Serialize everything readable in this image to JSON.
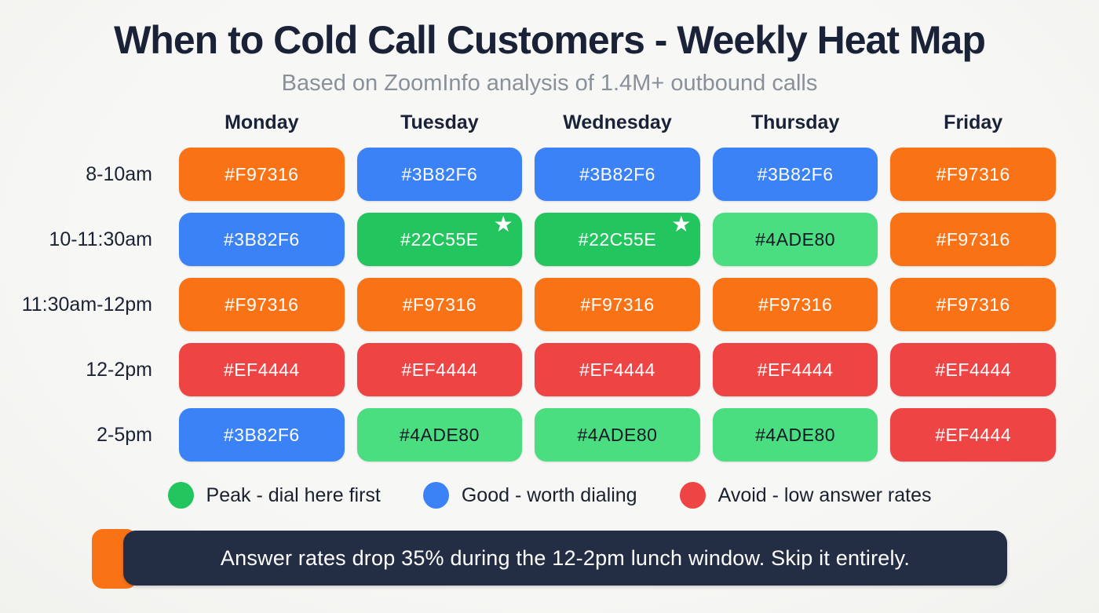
{
  "title": "When to Cold Call Customers - Weekly Heat Map",
  "subtitle": "Based on ZoomInfo analysis of 1.4M+ outbound calls",
  "theme": {
    "page_background": "#f5f5f3",
    "title_color": "#1a2238",
    "subtitle_color": "#8a9099",
    "label_color": "#1a2233"
  },
  "chart_data": {
    "type": "heatmap",
    "title": "When to Cold Call Customers - Weekly Heat Map",
    "subtitle": "Based on ZoomInfo analysis of 1.4M+ outbound calls",
    "columns": [
      "Monday",
      "Tuesday",
      "Wednesday",
      "Thursday",
      "Friday"
    ],
    "rows": [
      "8-10am",
      "10-11:30am",
      "11:30am-12pm",
      "12-2pm",
      "2-5pm"
    ],
    "star_icon": "★",
    "star_meaning": "best slots",
    "cells": [
      [
        {
          "color": "#F97316",
          "label": "#F97316",
          "text_color": "#FFFFFF",
          "star": false
        },
        {
          "color": "#3B82F6",
          "label": "#3B82F6",
          "text_color": "#FFFFFF",
          "star": false
        },
        {
          "color": "#3B82F6",
          "label": "#3B82F6",
          "text_color": "#FFFFFF",
          "star": false
        },
        {
          "color": "#3B82F6",
          "label": "#3B82F6",
          "text_color": "#FFFFFF",
          "star": false
        },
        {
          "color": "#F97316",
          "label": "#F97316",
          "text_color": "#FFFFFF",
          "star": false
        }
      ],
      [
        {
          "color": "#3B82F6",
          "label": "#3B82F6",
          "text_color": "#FFFFFF",
          "star": false
        },
        {
          "color": "#22C55E",
          "label": "#22C55E",
          "text_color": "#FFFFFF",
          "star": true
        },
        {
          "color": "#22C55E",
          "label": "#22C55E",
          "text_color": "#FFFFFF",
          "star": true
        },
        {
          "color": "#4ADE80",
          "label": "#4ADE80",
          "text_color": "#111827",
          "star": false
        },
        {
          "color": "#F97316",
          "label": "#F97316",
          "text_color": "#FFFFFF",
          "star": false
        }
      ],
      [
        {
          "color": "#F97316",
          "label": "#F97316",
          "text_color": "#FFFFFF",
          "star": false
        },
        {
          "color": "#F97316",
          "label": "#F97316",
          "text_color": "#FFFFFF",
          "star": false
        },
        {
          "color": "#F97316",
          "label": "#F97316",
          "text_color": "#FFFFFF",
          "star": false
        },
        {
          "color": "#F97316",
          "label": "#F97316",
          "text_color": "#FFFFFF",
          "star": false
        },
        {
          "color": "#F97316",
          "label": "#F97316",
          "text_color": "#FFFFFF",
          "star": false
        }
      ],
      [
        {
          "color": "#EF4444",
          "label": "#EF4444",
          "text_color": "#FFFFFF",
          "star": false
        },
        {
          "color": "#EF4444",
          "label": "#EF4444",
          "text_color": "#FFFFFF",
          "star": false
        },
        {
          "color": "#EF4444",
          "label": "#EF4444",
          "text_color": "#FFFFFF",
          "star": false
        },
        {
          "color": "#EF4444",
          "label": "#EF4444",
          "text_color": "#FFFFFF",
          "star": false
        },
        {
          "color": "#EF4444",
          "label": "#EF4444",
          "text_color": "#FFFFFF",
          "star": false
        }
      ],
      [
        {
          "color": "#3B82F6",
          "label": "#3B82F6",
          "text_color": "#FFFFFF",
          "star": false
        },
        {
          "color": "#4ADE80",
          "label": "#4ADE80",
          "text_color": "#111827",
          "star": false
        },
        {
          "color": "#4ADE80",
          "label": "#4ADE80",
          "text_color": "#111827",
          "star": false
        },
        {
          "color": "#4ADE80",
          "label": "#4ADE80",
          "text_color": "#111827",
          "star": false
        },
        {
          "color": "#EF4444",
          "label": "#EF4444",
          "text_color": "#FFFFFF",
          "star": false
        }
      ]
    ],
    "legend_position": "bottom"
  },
  "legend": [
    {
      "color": "#22C55E",
      "label": "Peak - dial here first"
    },
    {
      "color": "#3B82F6",
      "label": "Good - worth dialing"
    },
    {
      "color": "#EF4444",
      "label": "Avoid - low answer rates"
    }
  ],
  "callout": {
    "text": "Answer rates drop 35% during the 12-2pm lunch window. Skip it entirely.",
    "accent_color": "#F97316",
    "background": "#232E45",
    "text_color": "#FFFFFF"
  }
}
